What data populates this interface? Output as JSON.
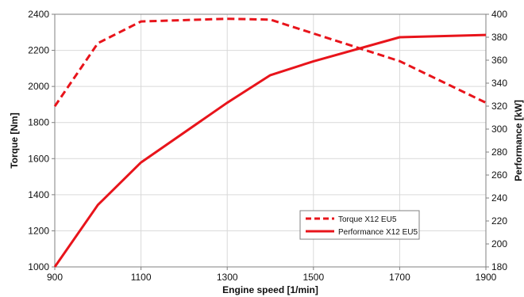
{
  "chart_data": {
    "type": "line",
    "title": "",
    "xlabel": "Engine speed [1/min]",
    "ylabel_left": "Torque [Nm]",
    "ylabel_right": "Performance [kW]",
    "x_ticks": [
      900,
      1100,
      1300,
      1500,
      1700,
      1900
    ],
    "xlim": [
      900,
      1900
    ],
    "ylim_left": [
      1000,
      2400
    ],
    "ylim_right": [
      180,
      400
    ],
    "y_ticks_left": [
      1000,
      1200,
      1400,
      1600,
      1800,
      2000,
      2200,
      2400
    ],
    "y_ticks_right": [
      180,
      200,
      220,
      240,
      260,
      280,
      300,
      320,
      340,
      360,
      380,
      400
    ],
    "grid": true,
    "legend_position": "lower-right",
    "series": [
      {
        "name": "Torque X12 EU5",
        "axis": "left",
        "style": "dashed",
        "color": "#e8141b",
        "x": [
          900,
          1000,
          1100,
          1300,
          1400,
          1700,
          1900
        ],
        "y": [
          1890,
          2240,
          2360,
          2375,
          2370,
          2140,
          1910
        ]
      },
      {
        "name": "Performance X12 EU5",
        "axis": "right",
        "style": "solid",
        "color": "#e8141b",
        "x": [
          900,
          1000,
          1100,
          1300,
          1400,
          1500,
          1700,
          1900
        ],
        "y": [
          180,
          234,
          271,
          323,
          347,
          359,
          380,
          382
        ]
      }
    ]
  }
}
